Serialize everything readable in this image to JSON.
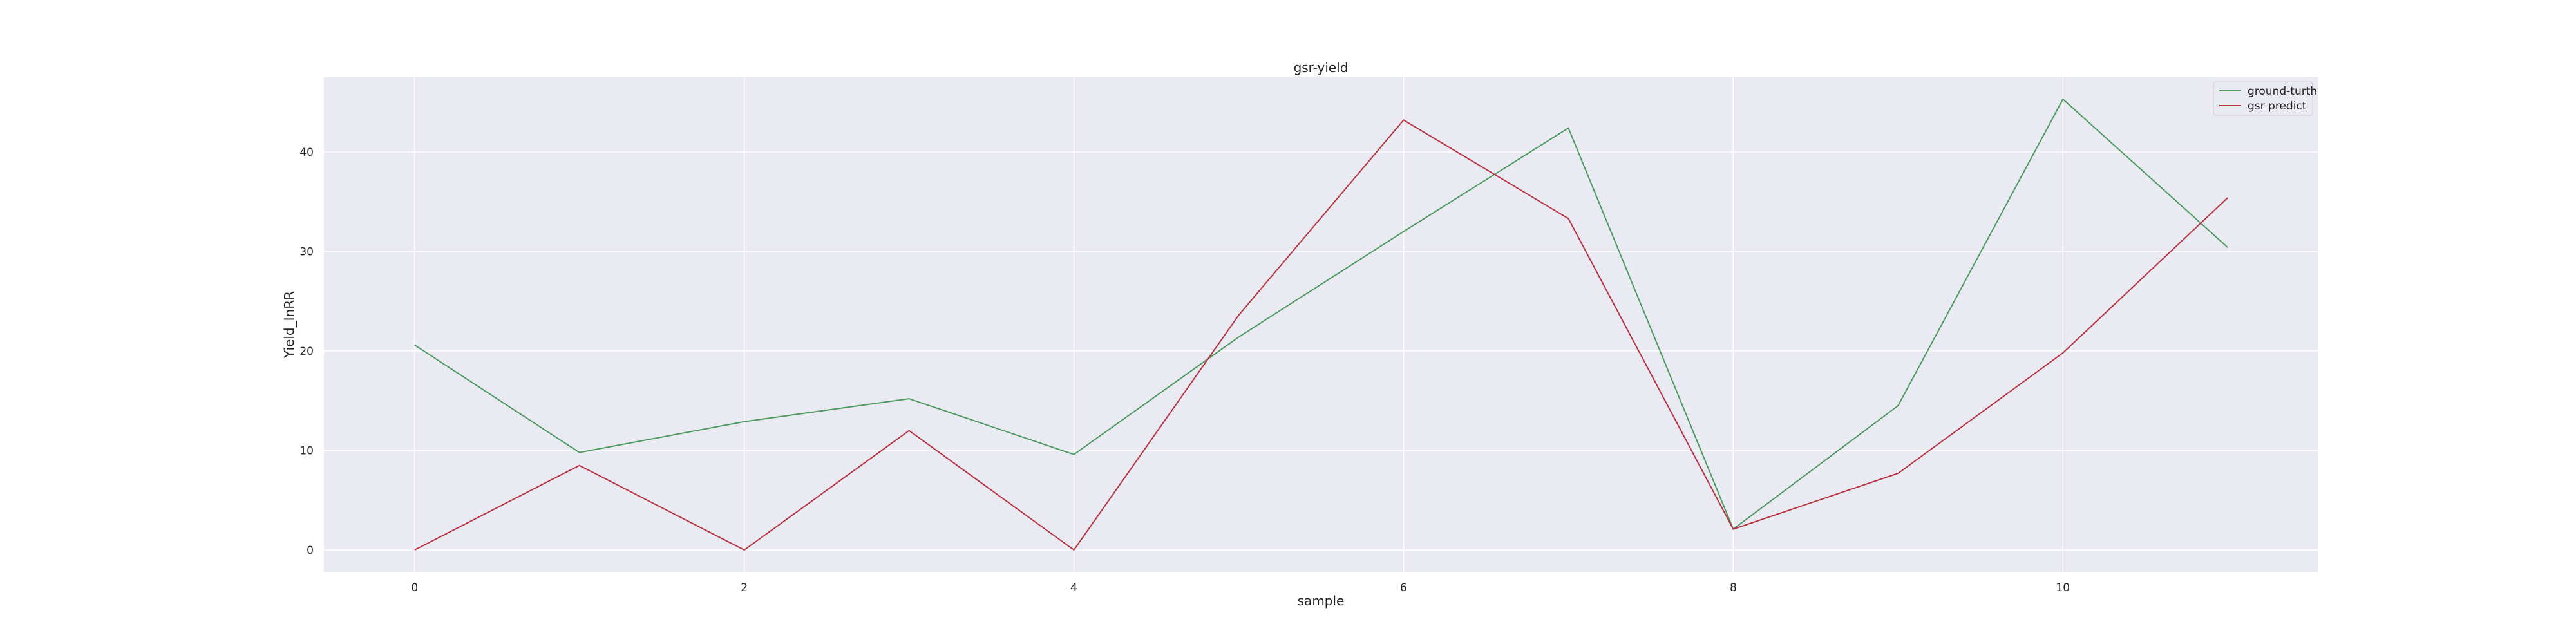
{
  "chart_data": {
    "type": "line",
    "title": "gsr-yield",
    "xlabel": "sample",
    "ylabel": "Yield_InRR",
    "x": [
      0,
      1,
      2,
      3,
      4,
      5,
      6,
      7,
      8,
      9,
      10,
      11
    ],
    "xlim": [
      -0.55,
      11.55
    ],
    "ylim": [
      -2.2,
      47.5
    ],
    "xticks": [
      0,
      2,
      4,
      6,
      8,
      10
    ],
    "yticks": [
      0,
      10,
      20,
      30,
      40
    ],
    "grid": true,
    "legend_position": "top-right",
    "series": [
      {
        "name": "ground-turth",
        "color": "#4c9a5e",
        "values": [
          20.6,
          9.8,
          12.9,
          15.2,
          9.6,
          21.4,
          32.0,
          42.4,
          2.1,
          14.5,
          45.3,
          30.4
        ]
      },
      {
        "name": "gsr predict",
        "color": "#b8323f",
        "values": [
          0.0,
          8.5,
          0.0,
          12.0,
          0.0,
          23.6,
          43.2,
          33.3,
          2.1,
          7.7,
          19.8,
          35.4
        ]
      }
    ]
  }
}
